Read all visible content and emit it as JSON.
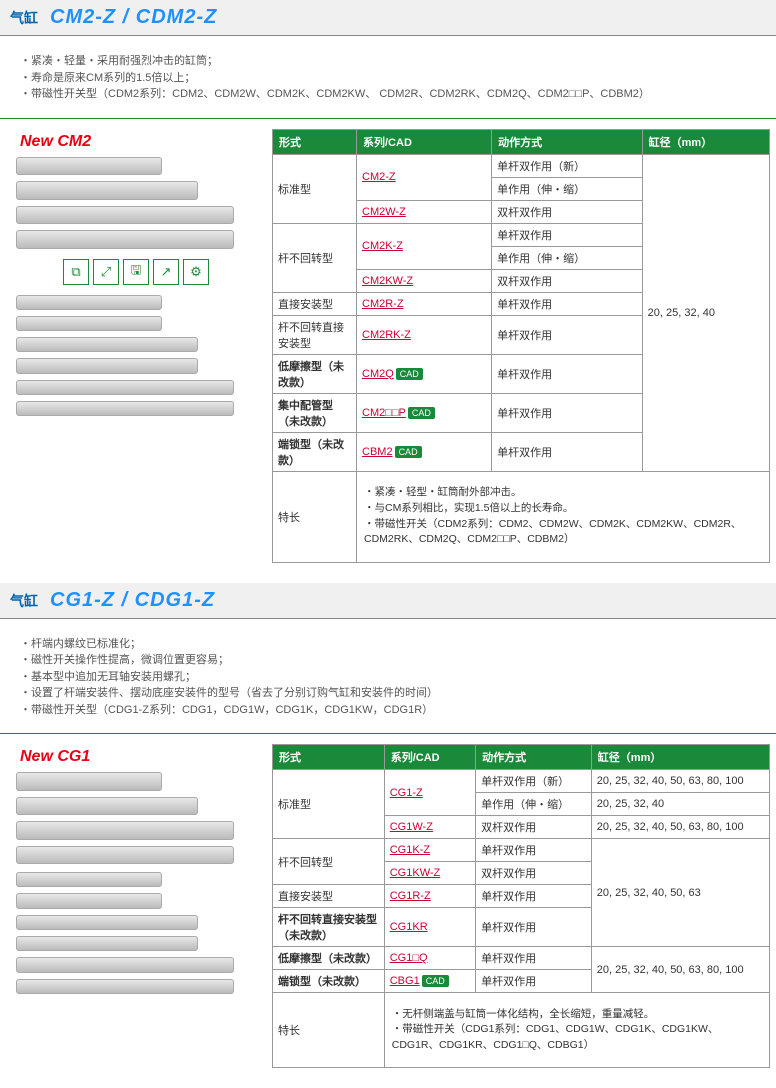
{
  "sections": [
    {
      "label": "气缸",
      "model": "CM2-Z / CDM2-Z",
      "bullets": [
        "・紧凑・轻量・采用耐强烈冲击的缸筒；",
        "・寿命是原来CM系列的1.5倍以上；",
        "・带磁性开关型（CDM2系列：CDM2、CDM2W、CDM2K、CDM2KW、 CDM2R、CDM2RK、CDM2Q、CDM2□□P、CDBM2）"
      ],
      "new_label": "New CM2",
      "table": {
        "headers": [
          "形式",
          "系列/CAD",
          "动作方式",
          "缸径（mm）"
        ],
        "bore": "20, 25, 32, 40",
        "rows": [
          {
            "type": "标准型",
            "rowspan": 3,
            "series": "CM2-Z",
            "action": "单杆双作用（新）"
          },
          {
            "series": "",
            "action": "单作用（伸・缩）",
            "same_series_above": true
          },
          {
            "series": "CM2W-Z",
            "action": "双杆双作用"
          },
          {
            "type": "杆不回转型",
            "rowspan": 3,
            "series": "CM2K-Z",
            "action": "单杆双作用"
          },
          {
            "series": "",
            "action": "单作用（伸・缩）",
            "same_series_above": true
          },
          {
            "series": "CM2KW-Z",
            "action": "双杆双作用"
          },
          {
            "type": "直接安装型",
            "series": "CM2R-Z",
            "action": "单杆双作用"
          },
          {
            "type": "杆不回转直接安装型",
            "series": "CM2RK-Z",
            "action": "单杆双作用"
          },
          {
            "type": "低摩擦型（未改款）",
            "bold": true,
            "series": "CM2Q",
            "cad": true,
            "action": "单杆双作用"
          },
          {
            "type": "集中配管型（未改款）",
            "bold": true,
            "series": "CM2□□P",
            "cad": true,
            "action": "单杆双作用"
          },
          {
            "type": "端锁型（未改款）",
            "bold": true,
            "series": "CBM2",
            "cad": true,
            "action": "单杆双作用"
          }
        ],
        "feature_label": "特长",
        "features": [
          "・紧凑・轻型・缸筒耐外部冲击。",
          "・与CM系列相比，实现1.5倍以上的长寿命。",
          "・带磁性开关（CDM2系列：CDM2、CDM2W、CDM2K、CDM2KW、CDM2R、CDM2RK、CDM2Q、CDM2□□P、CDBM2）"
        ]
      }
    },
    {
      "label": "气缸",
      "model": "CG1-Z / CDG1-Z",
      "bullets": [
        "・杆端内螺纹已标准化；",
        "・磁性开关操作性提高，微调位置更容易；",
        "・基本型中追加无耳轴安装用螺孔；",
        "・设置了杆端安装件、摆动底座安装件的型号（省去了分别订购气缸和安装件的时间）",
        "・带磁性开关型（CDG1-Z系列：CDG1，CDG1W，CDG1K，CDG1KW，CDG1R）"
      ],
      "new_label": "New CG1",
      "table": {
        "headers": [
          "形式",
          "系列/CAD",
          "动作方式",
          "缸径（mm）"
        ],
        "rows": [
          {
            "type": "标准型",
            "rowspan": 3,
            "series": "CG1-Z",
            "action": "单杆双作用（新）",
            "bore": "20, 25, 32, 40, 50, 63, 80, 100"
          },
          {
            "series": "",
            "action": "单作用（伸・缩）",
            "same_series_above": true,
            "bore": "20, 25, 32, 40"
          },
          {
            "series": "CG1W-Z",
            "action": "双杆双作用",
            "bore": "20, 25, 32, 40, 50, 63, 80, 100"
          },
          {
            "type": "杆不回转型",
            "rowspan": 2,
            "series": "CG1K-Z",
            "action": "单杆双作用",
            "bore_rowspan": 4,
            "bore": "20, 25, 32, 40, 50, 63"
          },
          {
            "series": "CG1KW-Z",
            "action": "双杆双作用"
          },
          {
            "type": "直接安装型",
            "series": "CG1R-Z",
            "action": "单杆双作用"
          },
          {
            "type": "杆不回转直接安装型（未改款）",
            "bold": true,
            "series": "CG1KR",
            "action": "单杆双作用"
          },
          {
            "type": "低摩擦型（未改款）",
            "bold": true,
            "series": "CG1□Q",
            "action": "单杆双作用",
            "bore_rowspan": 2,
            "bore": "20, 25, 32, 40, 50, 63, 80, 100"
          },
          {
            "type": "端锁型（未改款）",
            "bold": true,
            "series": "CBG1",
            "cad": true,
            "action": "单杆双作用"
          }
        ],
        "feature_label": "特长",
        "features": [
          "・无杆侧端盖与缸筒一体化结构，全长缩短，重量减轻。",
          "・带磁性开关（CDG1系列：CDG1、CDG1W、CDG1K、CDG1KW、CDG1R、CDG1KR、CDG1□Q、CDBG1）"
        ]
      }
    }
  ],
  "tool_icons": [
    "⧉",
    "⤢",
    "🖫",
    "↗",
    "⚙"
  ]
}
